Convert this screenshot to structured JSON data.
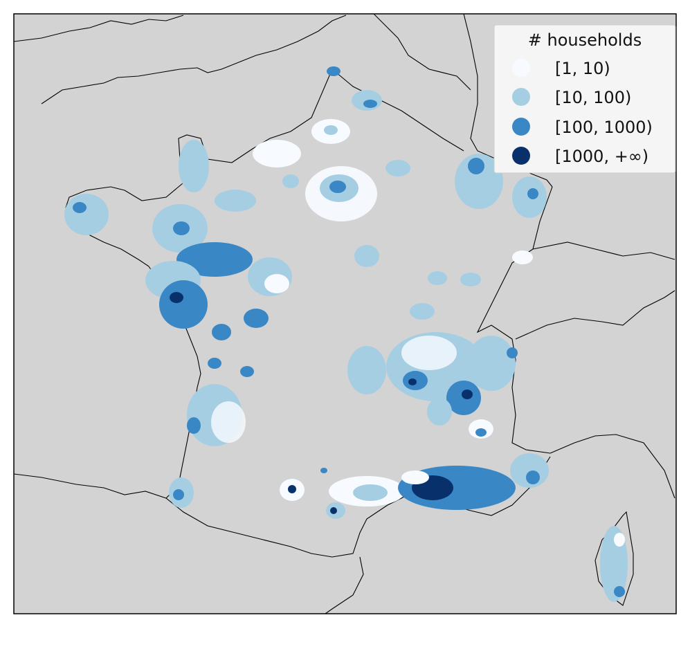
{
  "map": {
    "background_color": "#d3d3d3",
    "border_color": "#000000",
    "legend": {
      "title": "# households",
      "entries": [
        {
          "label": "[1, 10)",
          "color": "#f7fbff"
        },
        {
          "label": "[10, 100)",
          "color": "#a6cee3"
        },
        {
          "label": "[100, 1000)",
          "color": "#3a87c5"
        },
        {
          "label": "[1000, +∞)",
          "color": "#08306b"
        }
      ],
      "placement": "top-right"
    }
  }
}
